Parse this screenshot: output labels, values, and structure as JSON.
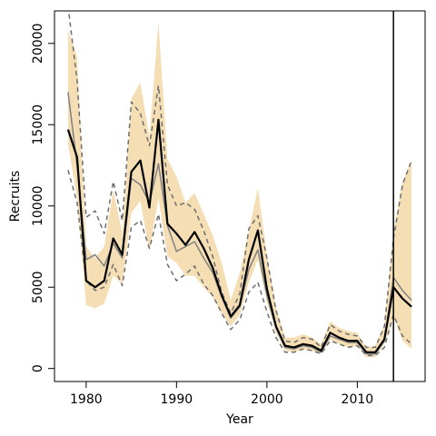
{
  "chart_data": {
    "type": "line",
    "title": "",
    "xlabel": "Year",
    "ylabel": "Recruits",
    "xlim": [
      1976.5,
      2017.5
    ],
    "ylim": [
      -800,
      22000
    ],
    "x_ticks": [
      1980,
      1990,
      2000,
      2010
    ],
    "y_ticks": [
      0,
      5000,
      10000,
      15000,
      20000
    ],
    "vline_x": 2014,
    "grid": false,
    "legend": "none",
    "x": [
      1978,
      1979,
      1980,
      1981,
      1982,
      1983,
      1984,
      1985,
      1986,
      1987,
      1988,
      1989,
      1990,
      1991,
      1992,
      1993,
      1994,
      1995,
      1996,
      1997,
      1998,
      1999,
      2000,
      2001,
      2002,
      2003,
      2004,
      2005,
      2006,
      2007,
      2008,
      2009,
      2010,
      2011,
      2012,
      2013,
      2014,
      2015,
      2016
    ],
    "series": [
      {
        "role": "ci_band",
        "lower": [
          13800,
          10500,
          3900,
          3700,
          4000,
          5700,
          5200,
          9600,
          10300,
          7200,
          10500,
          6900,
          6500,
          5700,
          5700,
          5000,
          4400,
          3400,
          2600,
          3300,
          5300,
          6700,
          4100,
          2200,
          1100,
          1000,
          1200,
          1100,
          900,
          1800,
          1500,
          1300,
          1400,
          700,
          700,
          1500,
          3200,
          1700,
          1200
        ],
        "upper": [
          20800,
          19200,
          7500,
          6800,
          7500,
          11000,
          8300,
          16600,
          17600,
          14200,
          21300,
          12900,
          11800,
          10200,
          10800,
          9500,
          8200,
          6500,
          4200,
          5900,
          8500,
          11100,
          7000,
          3800,
          1900,
          1900,
          2100,
          1900,
          1500,
          2900,
          2500,
          2300,
          2200,
          1300,
          1400,
          2700,
          8300,
          11500,
          12800
        ]
      },
      {
        "role": "mean",
        "values": [
          14700,
          13000,
          5400,
          5000,
          5400,
          8000,
          7000,
          12100,
          12800,
          9900,
          15300,
          8900,
          8300,
          7600,
          8400,
          7400,
          6200,
          4500,
          3200,
          3900,
          6700,
          8500,
          4900,
          2600,
          1400,
          1300,
          1500,
          1400,
          1100,
          2200,
          1900,
          1700,
          1700,
          1000,
          1000,
          1800,
          5000,
          4300,
          3800
        ]
      },
      {
        "role": "median",
        "values": [
          17000,
          12500,
          6700,
          7000,
          6300,
          7700,
          6800,
          11700,
          11300,
          10200,
          12600,
          8800,
          7200,
          7500,
          7800,
          6800,
          5900,
          4400,
          3100,
          3800,
          6100,
          7300,
          4500,
          2500,
          1300,
          1200,
          1400,
          1300,
          1000,
          2000,
          1800,
          1600,
          1600,
          900,
          900,
          1700,
          5600,
          4800,
          4200
        ]
      },
      {
        "role": "upper_dashed",
        "values": [
          22300,
          17700,
          9300,
          9700,
          8300,
          11500,
          9100,
          16400,
          15700,
          13700,
          17400,
          11300,
          10000,
          10200,
          9800,
          8500,
          6900,
          4700,
          3400,
          4600,
          8600,
          9400,
          6800,
          3600,
          1700,
          1600,
          1900,
          1800,
          1300,
          2700,
          2300,
          2100,
          2000,
          1300,
          1300,
          2600,
          8000,
          11300,
          12800
        ]
      },
      {
        "role": "lower_dashed",
        "values": [
          12200,
          10200,
          5400,
          4800,
          5000,
          6400,
          5100,
          8700,
          9100,
          7400,
          9500,
          6400,
          5400,
          5800,
          6300,
          5200,
          4500,
          3400,
          2400,
          3000,
          4700,
          5300,
          3500,
          1900,
          1000,
          1000,
          1200,
          1100,
          900,
          1700,
          1500,
          1300,
          1400,
          800,
          800,
          1300,
          3300,
          2000,
          1500
        ]
      }
    ],
    "colors": {
      "band": "#f5deb3",
      "mean": "#000000",
      "median": "#808080",
      "dashed": "#6e6e6e",
      "axes": "#000000"
    }
  }
}
